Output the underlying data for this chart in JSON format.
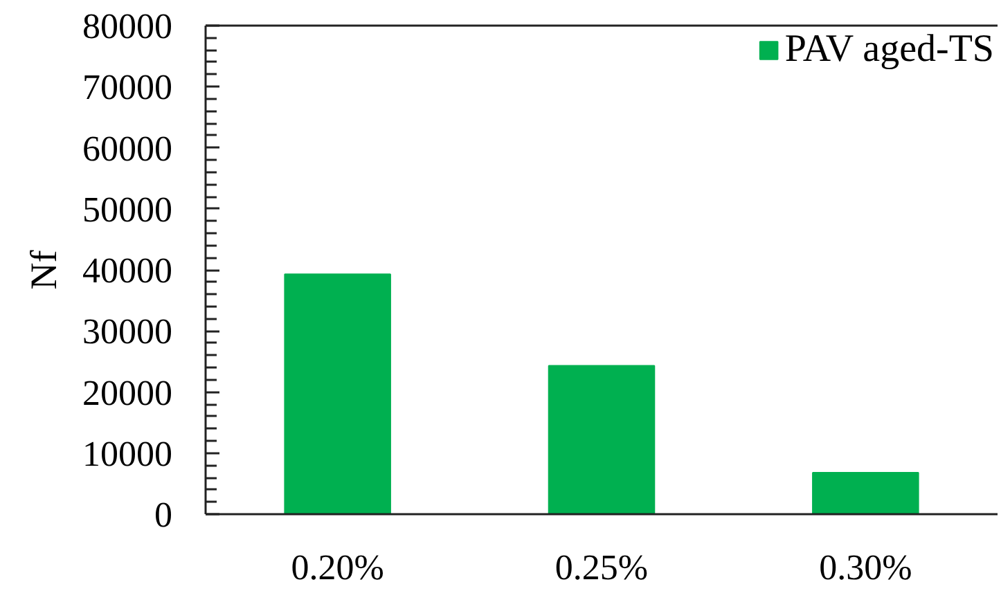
{
  "chart_data": {
    "type": "bar",
    "ylabel": "Nf",
    "categories": [
      "0.20%",
      "0.25%",
      "0.30%"
    ],
    "series": [
      {
        "name": "PAV aged-TS",
        "color": "#00b050",
        "values": [
          39300,
          24300,
          6800
        ]
      }
    ],
    "ylim": [
      0,
      80000
    ],
    "yticks": [
      0,
      {
        "value": 2000,
        "label": null
      },
      {
        "value": 4000,
        "label": null
      },
      {
        "value": 6000,
        "label": null
      },
      {
        "value": 8000,
        "label": null
      },
      10000,
      {
        "value": 12000,
        "label": null
      },
      {
        "value": 14000,
        "label": null
      },
      {
        "value": 16000,
        "label": null
      },
      {
        "value": 18000,
        "label": null
      },
      20000,
      {
        "value": 22000,
        "label": null
      },
      {
        "value": 24000,
        "label": null
      },
      {
        "value": 26000,
        "label": null
      },
      {
        "value": 28000,
        "label": null
      },
      30000,
      {
        "value": 32000,
        "label": null
      },
      {
        "value": 34000,
        "label": null
      },
      {
        "value": 36000,
        "label": null
      },
      {
        "value": 38000,
        "label": null
      },
      40000,
      {
        "value": 42000,
        "label": null
      },
      {
        "value": 44000,
        "label": null
      },
      {
        "value": 46000,
        "label": null
      },
      {
        "value": 48000,
        "label": null
      },
      50000,
      {
        "value": 52000,
        "label": null
      },
      {
        "value": 54000,
        "label": null
      },
      {
        "value": 56000,
        "label": null
      },
      {
        "value": 58000,
        "label": null
      },
      60000,
      {
        "value": 62000,
        "label": null
      },
      {
        "value": 64000,
        "label": null
      },
      {
        "value": 66000,
        "label": null
      },
      {
        "value": 68000,
        "label": null
      },
      70000,
      {
        "value": 72000,
        "label": null
      },
      {
        "value": 74000,
        "label": null
      },
      {
        "value": 76000,
        "label": null
      },
      {
        "value": 78000,
        "label": null
      },
      80000
    ],
    "grid": false,
    "legend": "top right"
  }
}
